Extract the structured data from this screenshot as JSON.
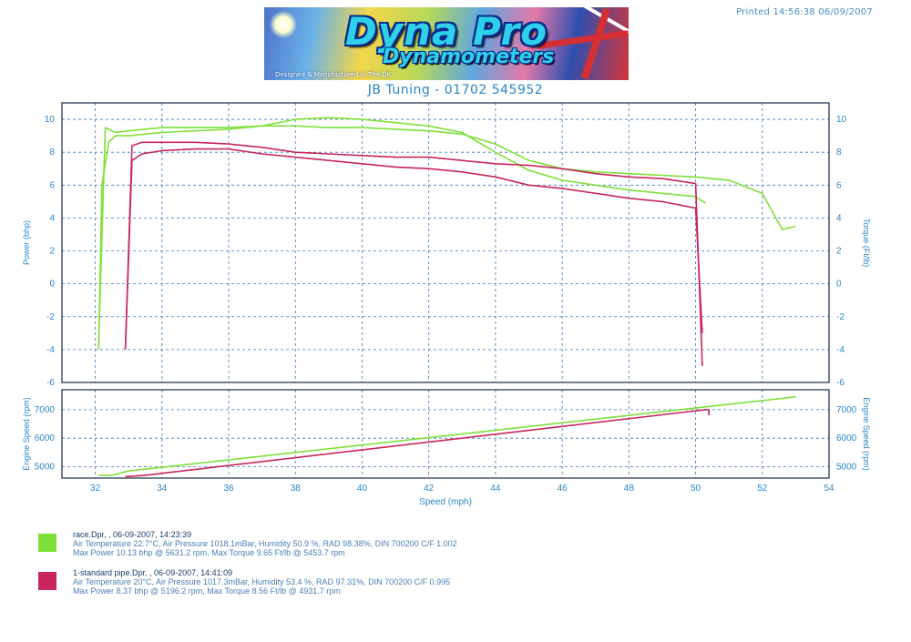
{
  "header": {
    "printed": "Printed 14:56:38 06/09/2007",
    "logo_brand": "Dyna Pro",
    "logo_sub": "Dynamometers",
    "logo_tagline": "Designed & Manufactured in The UK",
    "company": "JB Tuning - 01702 545952"
  },
  "colors": {
    "run1": "#7fe03a",
    "run2": "#c8265c",
    "axis": "#2a86c8",
    "grid": "#3a7ac0"
  },
  "chart_data": [
    {
      "type": "line",
      "title": "",
      "xlabel": "Speed (mph)",
      "ylabel": "Power (bhp)",
      "y2label": "Torque (Ft/lb)",
      "xlim": [
        31,
        54
      ],
      "ylim": [
        -6,
        11
      ],
      "xticks": [
        32,
        34,
        36,
        38,
        40,
        42,
        44,
        46,
        48,
        50,
        52,
        54
      ],
      "yticks": [
        10,
        8,
        6,
        4,
        2,
        0,
        -2,
        -4,
        -6
      ],
      "grid": true,
      "series": [
        {
          "name": "Power",
          "run": "race.Dpr",
          "x": [
            32.1,
            32.2,
            32.4,
            32.6,
            33,
            34,
            35,
            36,
            37,
            38,
            39,
            40,
            41,
            42,
            43,
            44,
            45,
            46,
            47,
            48,
            49,
            50,
            50.3
          ],
          "y": [
            -4,
            6,
            8.6,
            9.0,
            9.0,
            9.2,
            9.3,
            9.4,
            9.6,
            10.0,
            10.1,
            10.0,
            9.8,
            9.6,
            9.2,
            8.0,
            6.9,
            6.3,
            6.0,
            5.7,
            5.5,
            5.3,
            4.9
          ]
        },
        {
          "name": "Torque",
          "run": "race.Dpr",
          "x": [
            32.1,
            32.3,
            32.6,
            33,
            34,
            35,
            36,
            37,
            38,
            39,
            40,
            41,
            42,
            43,
            44,
            45,
            46,
            47,
            48,
            49,
            50,
            51,
            52,
            52.6,
            53
          ],
          "y": [
            -3.5,
            9.5,
            9.2,
            9.3,
            9.5,
            9.5,
            9.5,
            9.6,
            9.6,
            9.5,
            9.5,
            9.4,
            9.3,
            9.1,
            8.5,
            7.5,
            7.0,
            6.8,
            6.7,
            6.6,
            6.5,
            6.3,
            5.5,
            3.3,
            3.5
          ]
        },
        {
          "name": "Power",
          "run": "1-standard pipe.Dpr",
          "x": [
            32.9,
            33.1,
            33.4,
            34,
            35,
            36,
            37,
            38,
            39,
            40,
            41,
            42,
            43,
            44,
            45,
            46,
            47,
            48,
            49,
            50,
            50.2
          ],
          "y": [
            -4,
            7.5,
            7.9,
            8.1,
            8.2,
            8.2,
            7.9,
            7.7,
            7.5,
            7.3,
            7.1,
            7.0,
            6.8,
            6.5,
            6.0,
            5.8,
            5.5,
            5.2,
            5.0,
            4.6,
            -3
          ]
        },
        {
          "name": "Torque",
          "run": "1-standard pipe.Dpr",
          "x": [
            32.9,
            33.1,
            33.4,
            34,
            35,
            36,
            37,
            38,
            39,
            40,
            41,
            42,
            43,
            44,
            45,
            46,
            47,
            48,
            49,
            50,
            50.2
          ],
          "y": [
            -4,
            8.4,
            8.6,
            8.6,
            8.6,
            8.5,
            8.3,
            8.0,
            7.9,
            7.8,
            7.7,
            7.7,
            7.5,
            7.3,
            7.2,
            7.0,
            6.7,
            6.5,
            6.4,
            6.1,
            -5
          ]
        }
      ]
    },
    {
      "type": "line",
      "xlabel": "Speed (mph)",
      "ylabel": "Engine Speed (rpm)",
      "y2label": "Engine Speed (rpm)",
      "xlim": [
        31,
        54
      ],
      "ylim": [
        4600,
        7700
      ],
      "xticks": [
        32,
        34,
        36,
        38,
        40,
        42,
        44,
        46,
        48,
        50,
        52,
        54
      ],
      "yticks": [
        7000,
        6000,
        5000
      ],
      "grid": true,
      "series": [
        {
          "run": "race.Dpr",
          "x": [
            32.1,
            32.5,
            33,
            53
          ],
          "y": [
            4700,
            4700,
            4850,
            7450
          ]
        },
        {
          "run": "1-standard pipe.Dpr",
          "x": [
            32.9,
            33.5,
            50.3,
            50.4,
            50.4
          ],
          "y": [
            4650,
            4700,
            7000,
            7000,
            6800
          ]
        }
      ]
    }
  ],
  "legend": [
    {
      "color": "#7fe03a",
      "line1": "race.Dpr,  ,  06-09-2007,  14:23:39",
      "line2": "Air Temperature 22.7°C,  Air Pressure 1018.1mBar,  Humidity 50.9 %,  RAD 98.38%,  DIN 700200  C/F 1.002",
      "line3": "Max Power 10.13 bhp @ 5631.2 rpm,  Max Torque 9.65 Ft/lb @ 5453.7 rpm"
    },
    {
      "color": "#c8265c",
      "line1": "1-standard pipe.Dpr,  ,  06-09-2007,  14:41:09",
      "line2": "Air Temperature 20°C,  Air Pressure 1017.3mBar,  Humidity 53.4 %,  RAD 97.31%,  DIN 700200  C/F 0.995",
      "line3": "Max Power 8.37 bhp @ 5196.2 rpm,  Max Torque 8.56 Ft/lb @ 4931.7 rpm"
    }
  ]
}
